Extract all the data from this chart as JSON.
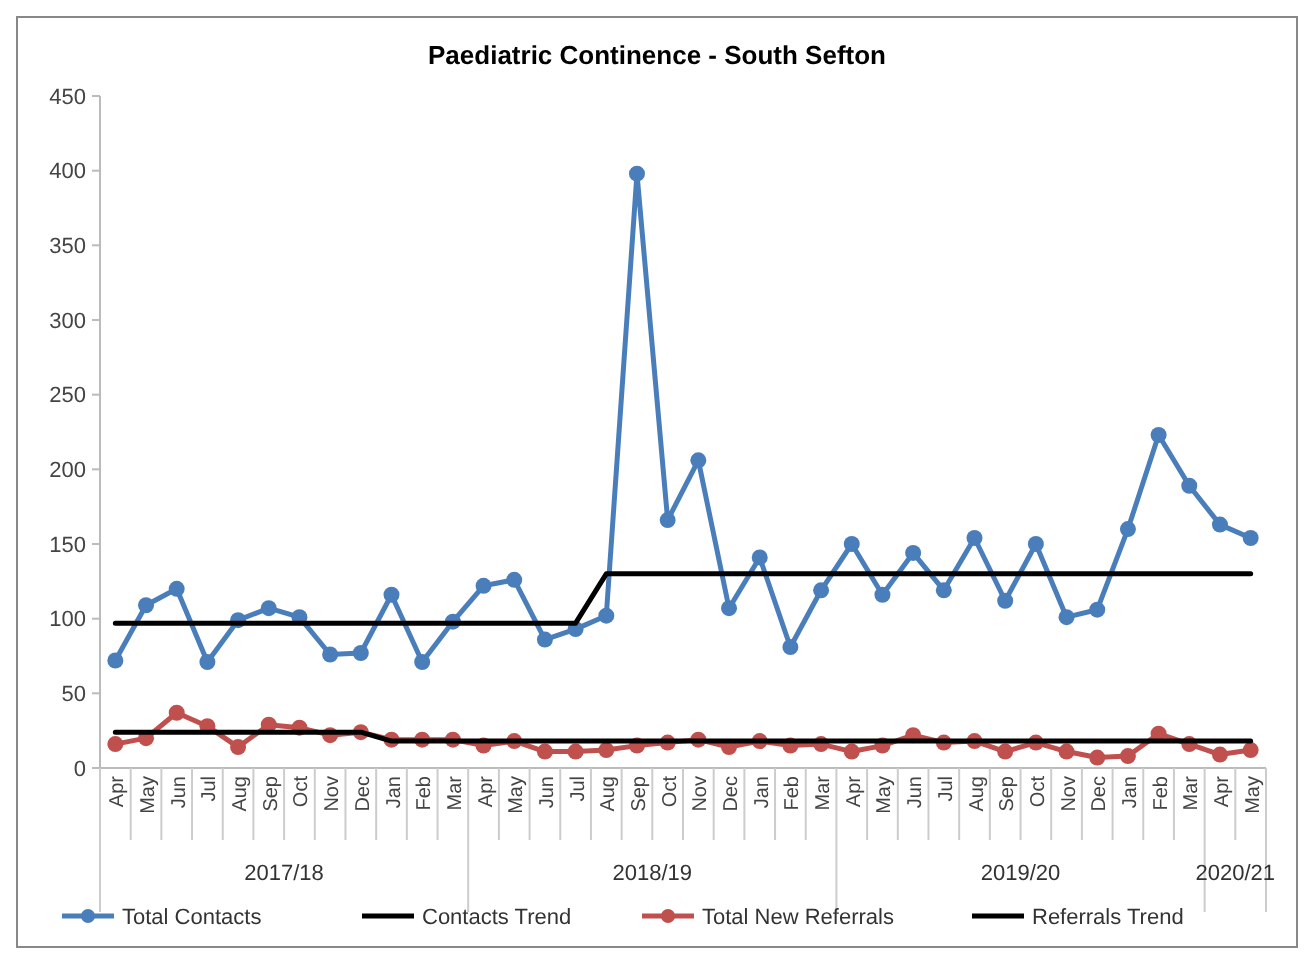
{
  "chart_data": {
    "type": "line",
    "title": "Paediatric Continence  - South Sefton",
    "categories": [
      "Apr",
      "May",
      "Jun",
      "Jul",
      "Aug",
      "Sep",
      "Oct",
      "Nov",
      "Dec",
      "Jan",
      "Feb",
      "Mar",
      "Apr",
      "May",
      "Jun",
      "Jul",
      "Aug",
      "Sep",
      "Oct",
      "Nov",
      "Dec",
      "Jan",
      "Feb",
      "Mar",
      "Apr",
      "May",
      "Jun",
      "Jul",
      "Aug",
      "Sep",
      "Oct",
      "Nov",
      "Dec",
      "Jan",
      "Feb",
      "Mar",
      "Apr",
      "May"
    ],
    "annotations": [
      "2017/18",
      "2018/19",
      "2019/20",
      "2020/21"
    ],
    "series": [
      {
        "name": "Total Contacts",
        "color": "#4a7ebb",
        "marker": "circle",
        "values": [
          72,
          109,
          120,
          71,
          99,
          107,
          101,
          76,
          77,
          116,
          71,
          98,
          122,
          126,
          86,
          93,
          102,
          398,
          166,
          206,
          107,
          141,
          81,
          119,
          150,
          116,
          144,
          119,
          154,
          112,
          150,
          101,
          106,
          160,
          223,
          189,
          163,
          154
        ]
      },
      {
        "name": "Contacts Trend",
        "color": "#000000",
        "marker": "none",
        "values": [
          97,
          97,
          97,
          97,
          97,
          97,
          97,
          97,
          97,
          97,
          97,
          97,
          97,
          97,
          97,
          97,
          130,
          130,
          130,
          130,
          130,
          130,
          130,
          130,
          130,
          130,
          130,
          130,
          130,
          130,
          130,
          130,
          130,
          130,
          130,
          130,
          130,
          130
        ]
      },
      {
        "name": "Total New Referrals",
        "color": "#c0504d",
        "marker": "circle",
        "values": [
          16,
          20,
          37,
          28,
          14,
          29,
          27,
          22,
          24,
          19,
          19,
          19,
          15,
          18,
          11,
          11,
          12,
          15,
          17,
          19,
          14,
          18,
          15,
          16,
          11,
          15,
          22,
          17,
          18,
          11,
          17,
          11,
          7,
          8,
          23,
          16,
          9,
          12
        ]
      },
      {
        "name": "Referrals Trend",
        "color": "#000000",
        "marker": "none",
        "values": [
          24,
          24,
          24,
          24,
          24,
          24,
          24,
          24,
          24,
          18,
          18,
          18,
          18,
          18,
          18,
          18,
          18,
          18,
          18,
          18,
          18,
          18,
          18,
          18,
          18,
          18,
          18,
          18,
          18,
          18,
          18,
          18,
          18,
          18,
          18,
          18,
          18,
          18
        ]
      }
    ],
    "ylim": [
      0,
      450
    ],
    "yticks": [
      0,
      50,
      100,
      150,
      200,
      250,
      300,
      350,
      400,
      450
    ],
    "grid": false,
    "legend": "bottom",
    "line_style": "solid"
  }
}
